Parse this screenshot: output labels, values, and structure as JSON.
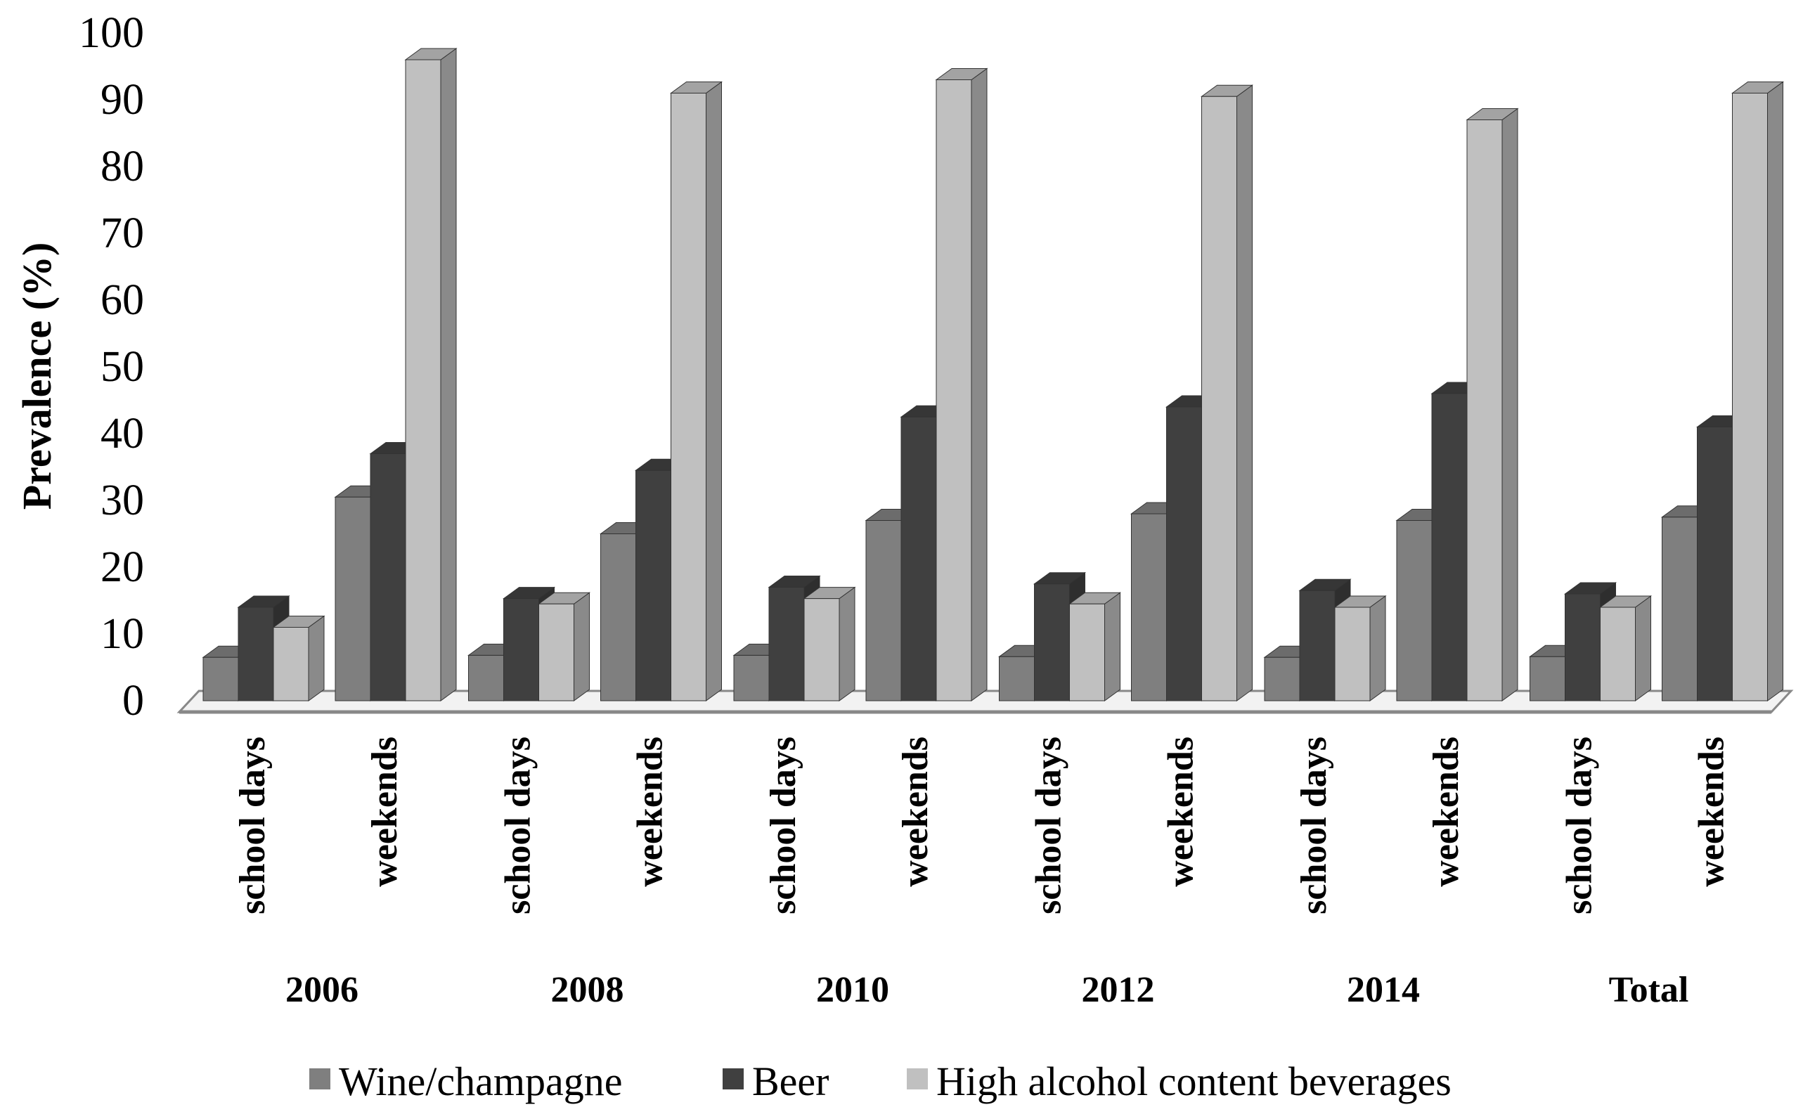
{
  "chart_data": {
    "type": "bar",
    "style": "3d-clustered-column",
    "ylabel": "Prevalence (%)",
    "xlabel": "",
    "title": "",
    "ylim": [
      0,
      100
    ],
    "yticks": [
      0,
      10,
      20,
      30,
      40,
      50,
      60,
      70,
      80,
      90,
      100
    ],
    "groups": [
      "2006",
      "2008",
      "2010",
      "2012",
      "2014",
      "Total"
    ],
    "subcategories": [
      "school days",
      "weekends"
    ],
    "categories": [
      "2006 school days",
      "2006 weekends",
      "2008 school days",
      "2008 weekends",
      "2010 school days",
      "2010 weekends",
      "2012 school days",
      "2012 weekends",
      "2014 school days",
      "2014 weekends",
      "Total school days",
      "Total weekends"
    ],
    "series": [
      {
        "name": "Wine/champagne",
        "color": "#7f7f7f",
        "values": [
          6.5,
          30.5,
          6.8,
          25,
          6.8,
          27,
          6.6,
          28,
          6.5,
          27,
          6.6,
          27.5
        ]
      },
      {
        "name": "Beer",
        "color": "#404040",
        "values": [
          14,
          37,
          15.3,
          34.5,
          17,
          42.5,
          17.5,
          44,
          16.5,
          46,
          16,
          41
        ]
      },
      {
        "name": "High alcohol content beverages",
        "color": "#c0c0c0",
        "values": [
          11,
          96,
          14.5,
          91,
          15.3,
          93,
          14.5,
          90.5,
          14,
          87,
          14,
          91
        ]
      }
    ],
    "legend_position": "bottom",
    "grid": false
  }
}
